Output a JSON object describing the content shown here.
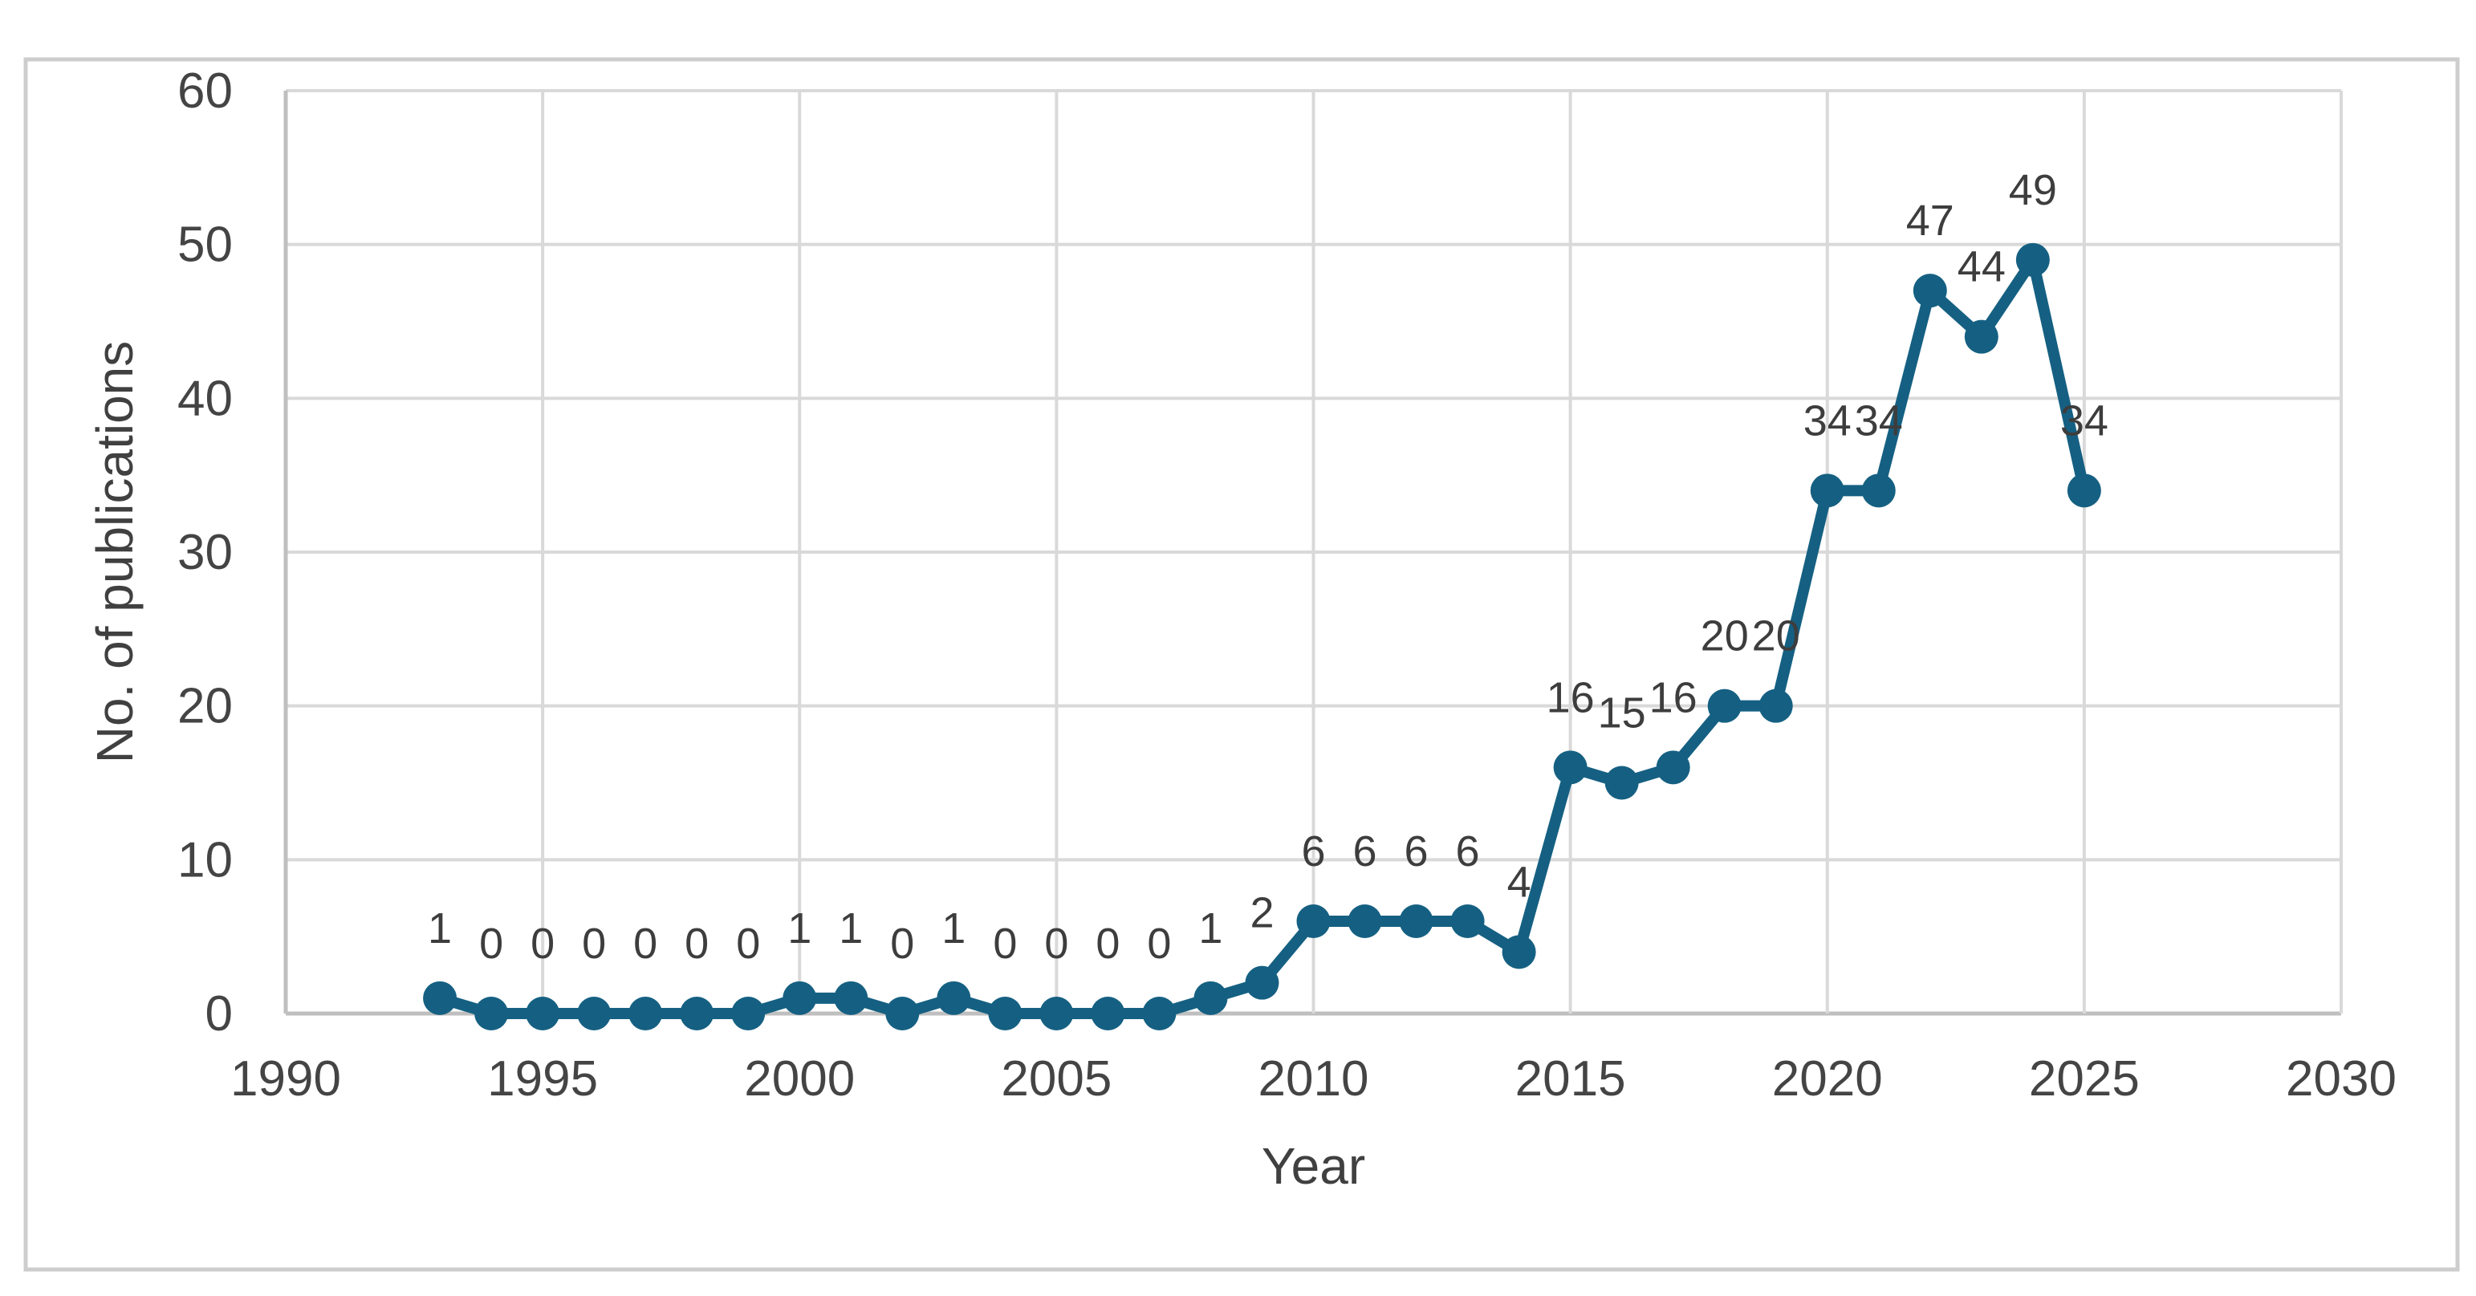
{
  "figure": {
    "kind": "excel-style-line-chart-screenshot",
    "background": "#ffffff",
    "outer_border_color": "#cdcdcd"
  },
  "chart_data": {
    "type": "line",
    "title": "",
    "xlabel": "Year",
    "ylabel": "No. of publications",
    "x": [
      1993,
      1994,
      1995,
      1996,
      1997,
      1998,
      1999,
      2000,
      2001,
      2002,
      2003,
      2004,
      2005,
      2006,
      2007,
      2008,
      2009,
      2010,
      2011,
      2012,
      2013,
      2014,
      2015,
      2016,
      2017,
      2018,
      2019,
      2020,
      2021,
      2022,
      2023,
      2024,
      2025
    ],
    "values": [
      1,
      0,
      0,
      0,
      0,
      0,
      0,
      1,
      1,
      0,
      1,
      0,
      0,
      0,
      0,
      1,
      2,
      6,
      6,
      6,
      6,
      4,
      16,
      15,
      16,
      20,
      20,
      34,
      34,
      47,
      44,
      49,
      34
    ],
    "data_labels_shown": true,
    "xlim": [
      1990,
      2030
    ],
    "ylim": [
      0,
      60
    ],
    "x_ticks": [
      1990,
      1995,
      2000,
      2005,
      2010,
      2015,
      2020,
      2025,
      2030
    ],
    "y_ticks": [
      0,
      10,
      20,
      30,
      40,
      50,
      60
    ],
    "grid": "on",
    "legend": "none",
    "series_color": "#156082",
    "marker": "circle",
    "gridline_color": "#d9d9d9",
    "axis_line_color": "#bfbfbf",
    "tick_label_color": "#444444",
    "data_label_color": "#3d3d3d",
    "axis_title_color": "#404040"
  }
}
